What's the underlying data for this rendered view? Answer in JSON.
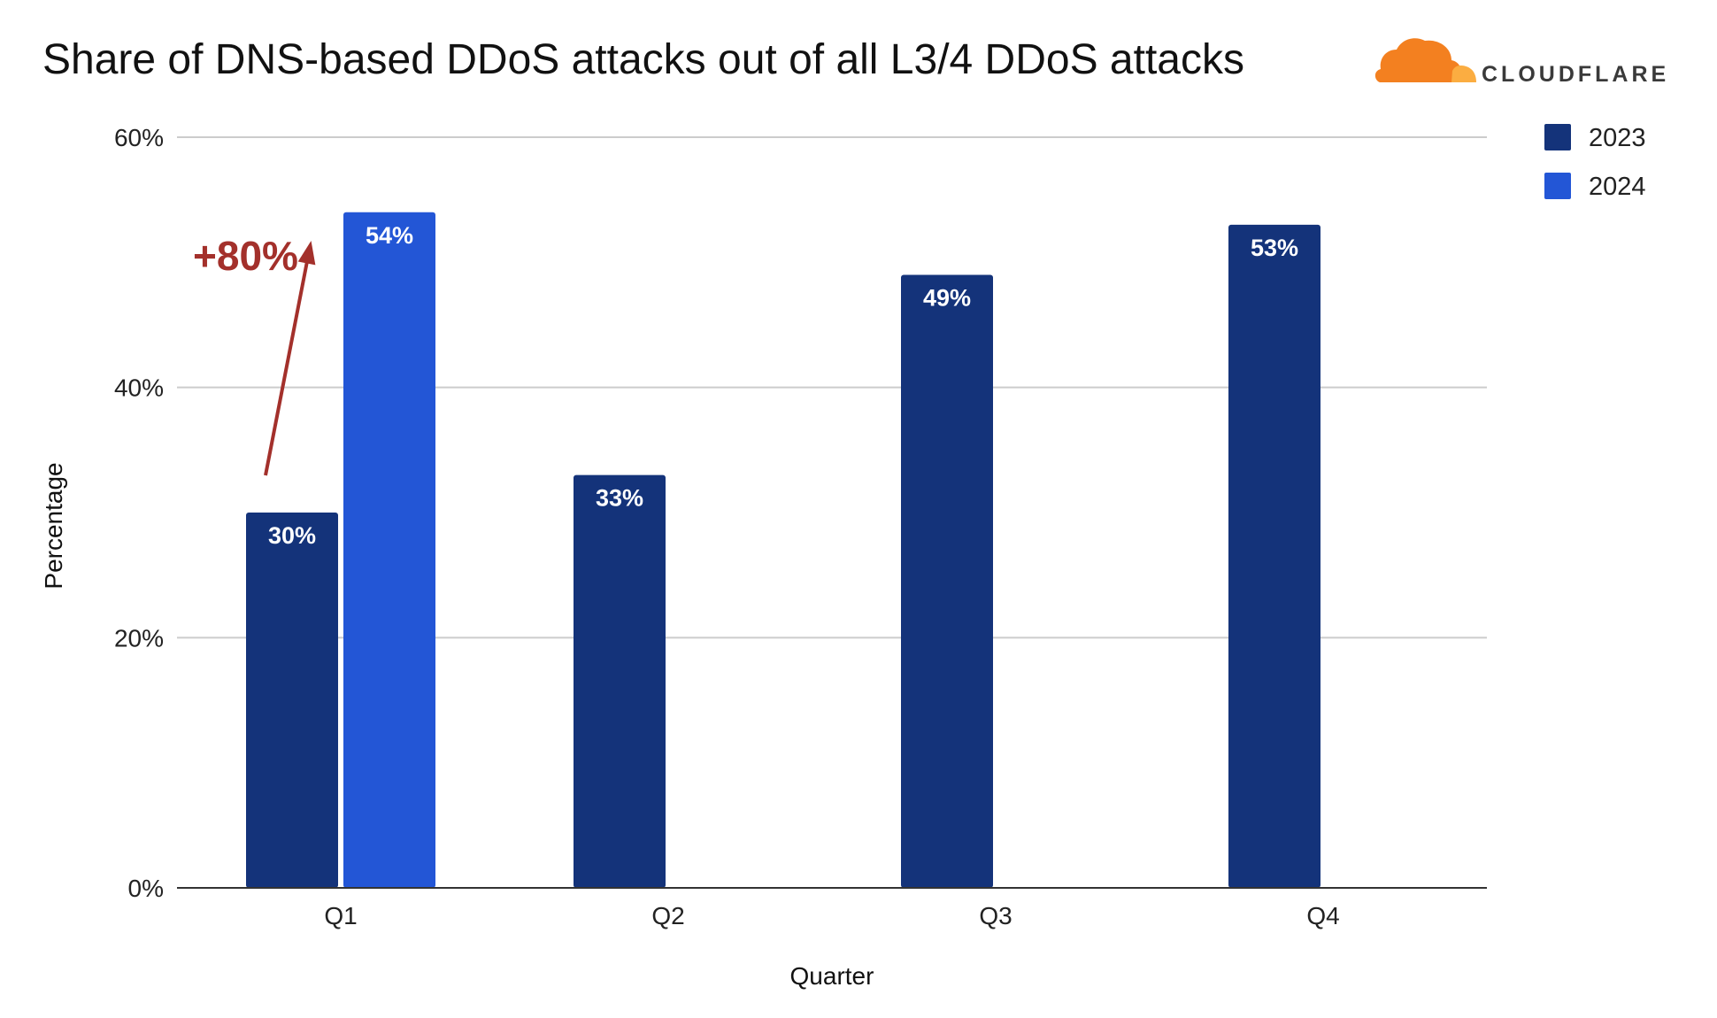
{
  "chart_data": {
    "type": "bar",
    "title": "Share of DNS-based DDoS attacks out of all L3/4 DDoS attacks",
    "xlabel": "Quarter",
    "ylabel": "Percentage",
    "categories": [
      "Q1",
      "Q2",
      "Q3",
      "Q4"
    ],
    "series": [
      {
        "name": "2023",
        "color": "#14337a",
        "values": [
          30,
          33,
          49,
          53
        ],
        "labels": [
          "30%",
          "33%",
          "49%",
          "53%"
        ]
      },
      {
        "name": "2024",
        "color": "#2356d6",
        "values": [
          54,
          null,
          null,
          null
        ],
        "labels": [
          "54%",
          "",
          "",
          ""
        ]
      }
    ],
    "ylim": [
      0,
      60
    ],
    "yticks": [
      0,
      20,
      40,
      60
    ],
    "ytick_labels": [
      "0%",
      "20%",
      "40%",
      "60%"
    ],
    "grid": true,
    "legend_position": "top-right",
    "annotation": {
      "text": "+80%",
      "color": "#a3302b",
      "from_value": 30,
      "to_value": 54
    }
  },
  "logo": {
    "text": "CLOUDFLARE",
    "icon": "cloud-icon",
    "color": "#f38020",
    "color_light": "#fbad41"
  }
}
